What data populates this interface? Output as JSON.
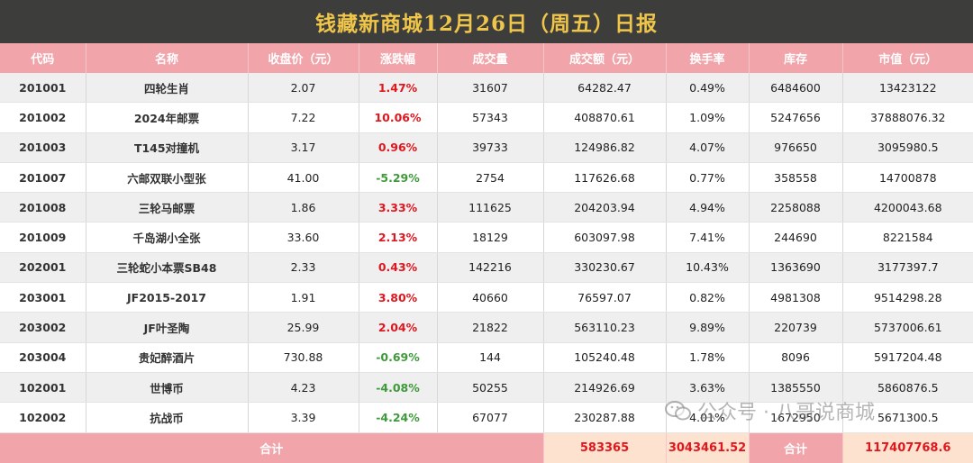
{
  "title": "钱藏新商城12月26日（周五）日报",
  "headers": [
    "代码",
    "名称",
    "收盘价（元）",
    "涨跌幅",
    "成交量",
    "成交额（元）",
    "换手率",
    "库存",
    "市值（元）"
  ],
  "rows": [
    {
      "code": "201001",
      "name": "四轮生肖",
      "close": "2.07",
      "change": "1.47%",
      "dir": "up",
      "volume": "31607",
      "amount": "64282.47",
      "turnover": "0.49%",
      "stock": "6484600",
      "mktcap": "13423122"
    },
    {
      "code": "201002",
      "name": "2024年邮票",
      "close": "7.22",
      "change": "10.06%",
      "dir": "up",
      "volume": "57343",
      "amount": "408870.61",
      "turnover": "1.09%",
      "stock": "5247656",
      "mktcap": "37888076.32"
    },
    {
      "code": "201003",
      "name": "T145对撞机",
      "close": "3.17",
      "change": "0.96%",
      "dir": "up",
      "volume": "39733",
      "amount": "124986.82",
      "turnover": "4.07%",
      "stock": "976650",
      "mktcap": "3095980.5"
    },
    {
      "code": "201007",
      "name": "六邮双联小型张",
      "close": "41.00",
      "change": "-5.29%",
      "dir": "down",
      "volume": "2754",
      "amount": "117626.68",
      "turnover": "0.77%",
      "stock": "358558",
      "mktcap": "14700878"
    },
    {
      "code": "201008",
      "name": "三轮马邮票",
      "close": "1.86",
      "change": "3.33%",
      "dir": "up",
      "volume": "111625",
      "amount": "204203.94",
      "turnover": "4.94%",
      "stock": "2258088",
      "mktcap": "4200043.68"
    },
    {
      "code": "201009",
      "name": "千岛湖小全张",
      "close": "33.60",
      "change": "2.13%",
      "dir": "up",
      "volume": "18129",
      "amount": "603097.98",
      "turnover": "7.41%",
      "stock": "244690",
      "mktcap": "8221584"
    },
    {
      "code": "202001",
      "name": "三轮蛇小本票SB48",
      "close": "2.33",
      "change": "0.43%",
      "dir": "up",
      "volume": "142216",
      "amount": "330230.67",
      "turnover": "10.43%",
      "stock": "1363690",
      "mktcap": "3177397.7"
    },
    {
      "code": "203001",
      "name": "JF2015-2017",
      "close": "1.91",
      "change": "3.80%",
      "dir": "up",
      "volume": "40660",
      "amount": "76597.07",
      "turnover": "0.82%",
      "stock": "4981308",
      "mktcap": "9514298.28"
    },
    {
      "code": "203002",
      "name": "JF叶圣陶",
      "close": "25.99",
      "change": "2.04%",
      "dir": "up",
      "volume": "21822",
      "amount": "563110.23",
      "turnover": "9.89%",
      "stock": "220739",
      "mktcap": "5737006.61"
    },
    {
      "code": "203004",
      "name": "贵妃醉酒片",
      "close": "730.88",
      "change": "-0.69%",
      "dir": "down",
      "volume": "144",
      "amount": "105240.48",
      "turnover": "1.78%",
      "stock": "8096",
      "mktcap": "5917204.48"
    },
    {
      "code": "102001",
      "name": "世博币",
      "close": "4.23",
      "change": "-4.08%",
      "dir": "down",
      "volume": "50255",
      "amount": "214926.69",
      "turnover": "3.63%",
      "stock": "1385550",
      "mktcap": "5860876.5"
    },
    {
      "code": "102002",
      "name": "抗战币",
      "close": "3.39",
      "change": "-4.24%",
      "dir": "down",
      "volume": "67077",
      "amount": "230287.88",
      "turnover": "4.01%",
      "stock": "1672950",
      "mktcap": "5671300.5"
    }
  ],
  "totals": {
    "label1": "合计",
    "volume": "583365",
    "amount": "3043461.52",
    "label2": "合计",
    "mktcap": "117407768.6"
  },
  "watermark": {
    "text": "公众号 · 八哥说商城",
    "icon": "wechat-icon"
  },
  "colors": {
    "header_bg": "#f1a5aa",
    "title_bg": "#3d3d3b",
    "title_fg": "#f0c64a",
    "up": "#e0171f",
    "down": "#3f9a3a",
    "total_cell": "#fde3cf"
  }
}
